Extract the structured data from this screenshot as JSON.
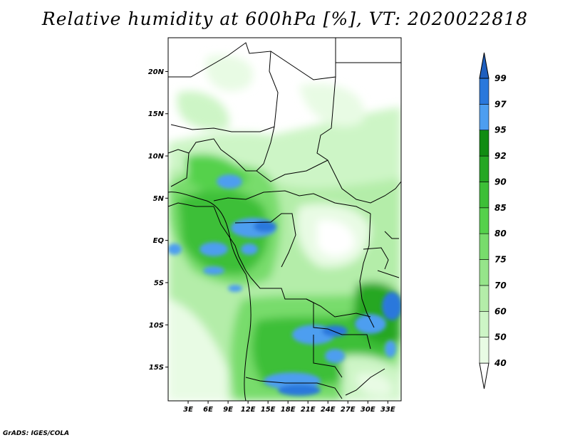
{
  "title": "Relative humidity at 600hPa [%], VT: 2020022818",
  "credit": "GrADS: IGES/COLA",
  "map": {
    "lon_range": [
      0,
      35
    ],
    "lat_range": [
      -19,
      24
    ],
    "lat_ticks": [
      {
        "lat": 20,
        "label": "20N"
      },
      {
        "lat": 15,
        "label": "15N"
      },
      {
        "lat": 10,
        "label": "10N"
      },
      {
        "lat": 5,
        "label": "5N"
      },
      {
        "lat": 0,
        "label": "EQ"
      },
      {
        "lat": -5,
        "label": "5S"
      },
      {
        "lat": -10,
        "label": "10S"
      },
      {
        "lat": -15,
        "label": "15S"
      }
    ],
    "lon_ticks": [
      {
        "lon": 3,
        "label": "3E"
      },
      {
        "lon": 6,
        "label": "6E"
      },
      {
        "lon": 9,
        "label": "9E"
      },
      {
        "lon": 12,
        "label": "12E"
      },
      {
        "lon": 15,
        "label": "15E"
      },
      {
        "lon": 18,
        "label": "18E"
      },
      {
        "lon": 21,
        "label": "21E"
      },
      {
        "lon": 24,
        "label": "24E"
      },
      {
        "lon": 27,
        "label": "27E"
      },
      {
        "lon": 30,
        "label": "30E"
      },
      {
        "lon": 33,
        "label": "33E"
      }
    ]
  },
  "colorbar": {
    "levels": [
      {
        "label": "40",
        "color": "#e8fbe4"
      },
      {
        "label": "50",
        "color": "#cdf5c6"
      },
      {
        "label": "60",
        "color": "#b4eda9"
      },
      {
        "label": "70",
        "color": "#96e58a"
      },
      {
        "label": "75",
        "color": "#78dc6c"
      },
      {
        "label": "80",
        "color": "#55d14c"
      },
      {
        "label": "85",
        "color": "#3dbf37"
      },
      {
        "label": "90",
        "color": "#25a724"
      },
      {
        "label": "92",
        "color": "#108c12"
      },
      {
        "label": "95",
        "color": "#4d9ef0"
      },
      {
        "label": "97",
        "color": "#2a78dc"
      },
      {
        "label": "99",
        "color": "#1f5fbe"
      }
    ],
    "under_color": "#ffffff",
    "over_color": "#1f5fbe"
  }
}
